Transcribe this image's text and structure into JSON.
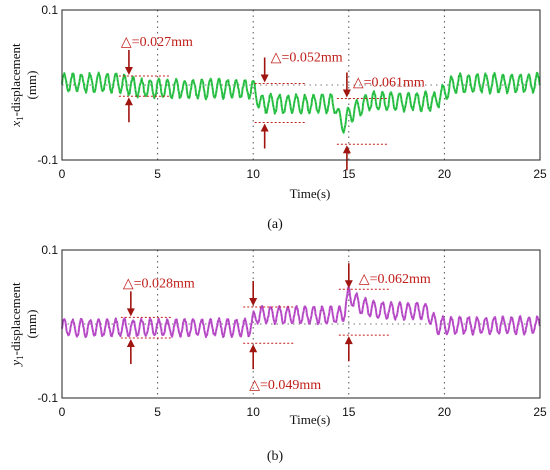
{
  "chart_data": [
    {
      "type": "line",
      "panel": "(a)",
      "ylabel": "x1-displacement\n(mm)",
      "ylabel_var": "x",
      "ylabel_sub": "1",
      "ylabel_rest": "-displacement",
      "ylabel_unit": "(mm)",
      "xlabel": "Time(s)",
      "xlim": [
        0,
        25
      ],
      "ylim": [
        -0.1,
        0.1
      ],
      "xticks": [
        "0",
        "5",
        "10",
        "15",
        "20",
        "25"
      ],
      "yticks": [
        "0.1",
        "-0.1"
      ],
      "grid": "dotted",
      "color": "#2ec84a",
      "oscillation_period_s": 0.45,
      "oscillation_amplitude_mm": 0.012,
      "baseline": {
        "x": [
          0,
          3.0,
          4.2,
          10.0,
          10.4,
          14.3,
          14.6,
          15.2,
          16.0,
          19.5,
          20.5,
          25
        ],
        "y": [
          0.003,
          0.003,
          -0.005,
          -0.005,
          -0.025,
          -0.025,
          -0.055,
          -0.035,
          -0.022,
          -0.022,
          0.002,
          0.003
        ]
      },
      "annotations": [
        {
          "label": "△=0.027mm",
          "x": 3.5,
          "y_top": 0.012,
          "y_bottom": -0.015
        },
        {
          "label": "△=0.052mm",
          "x": 10.6,
          "y_top": 0.002,
          "y_bottom": -0.05
        },
        {
          "label": "△=0.061mm",
          "x": 14.9,
          "y_top": -0.018,
          "y_bottom": -0.079
        }
      ]
    },
    {
      "type": "line",
      "panel": "(b)",
      "ylabel": "y1-displacement\n(mm)",
      "ylabel_var": "y",
      "ylabel_sub": "1",
      "ylabel_rest": "-displacement",
      "ylabel_unit": "(mm)",
      "xlabel": "Time(s)",
      "xlim": [
        0,
        25
      ],
      "ylim": [
        -0.1,
        0.1
      ],
      "xticks": [
        "0",
        "5",
        "10",
        "15",
        "20",
        "25"
      ],
      "yticks": [
        "0.1",
        "-0.1"
      ],
      "grid": "dotted",
      "color": "#c050d0",
      "oscillation_period_s": 0.45,
      "oscillation_amplitude_mm": 0.011,
      "baseline": {
        "x": [
          0,
          9.8,
          10.2,
          14.7,
          15.0,
          15.6,
          16.5,
          19.0,
          19.6,
          25
        ],
        "y": [
          -0.005,
          -0.005,
          0.012,
          0.012,
          0.04,
          0.025,
          0.018,
          0.018,
          -0.002,
          -0.002
        ]
      },
      "annotations": [
        {
          "label": "△=0.028mm",
          "x": 3.6,
          "y_top": 0.009,
          "y_bottom": -0.019
        },
        {
          "label": "△=0.049mm",
          "x": 10.0,
          "y_top": 0.023,
          "y_bottom": -0.026
        },
        {
          "label": "△=0.062mm",
          "x": 15.0,
          "y_top": 0.047,
          "y_bottom": -0.015
        }
      ]
    }
  ]
}
